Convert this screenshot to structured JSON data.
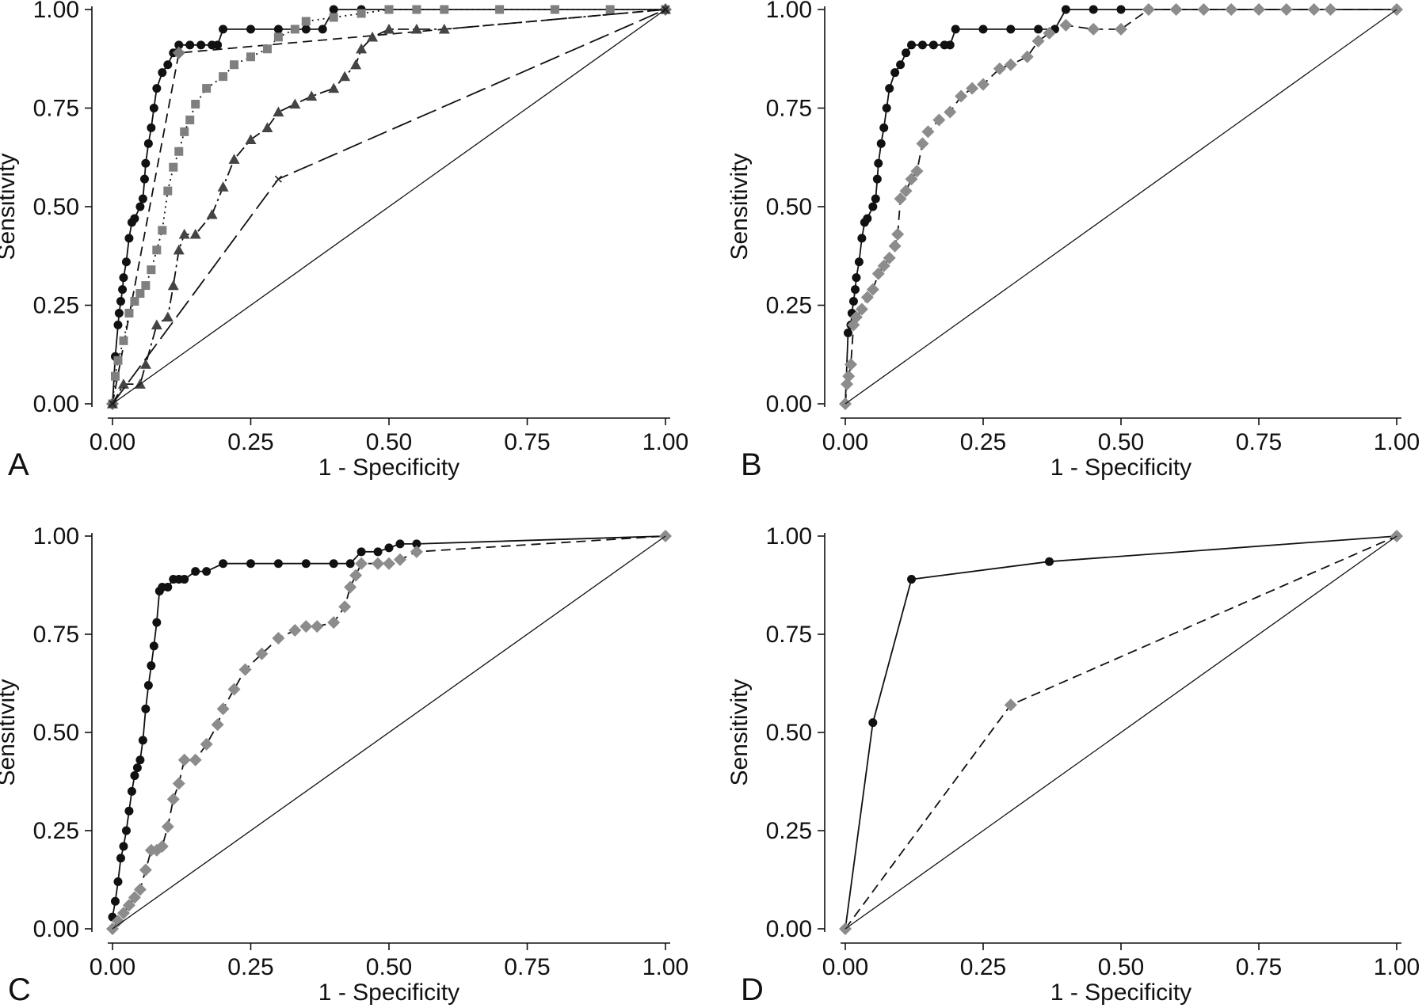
{
  "chart_data": [
    {
      "type": "line",
      "panel": "A",
      "xlabel": "1 - Specificity",
      "ylabel": "Sensitivity",
      "xlim": [
        0,
        1
      ],
      "ylim": [
        0,
        1
      ],
      "xticks": [
        "0.00",
        "0.25",
        "0.50",
        "0.75",
        "1.00"
      ],
      "yticks": [
        "0.00",
        "0.25",
        "0.50",
        "0.75",
        "1.00"
      ],
      "grid": false,
      "series": [
        {
          "marker": "circle",
          "color": "#111111",
          "line": "solid",
          "x": [
            0,
            0.005,
            0.01,
            0.012,
            0.015,
            0.018,
            0.02,
            0.025,
            0.03,
            0.035,
            0.04,
            0.05,
            0.055,
            0.058,
            0.06,
            0.065,
            0.07,
            0.075,
            0.08,
            0.09,
            0.1,
            0.11,
            0.12,
            0.14,
            0.16,
            0.18,
            0.19,
            0.2,
            0.25,
            0.3,
            0.35,
            0.38,
            0.4,
            0.45,
            0.5,
            0.55,
            1.0
          ],
          "y": [
            0,
            0.12,
            0.2,
            0.23,
            0.26,
            0.29,
            0.32,
            0.36,
            0.42,
            0.46,
            0.47,
            0.5,
            0.52,
            0.57,
            0.61,
            0.66,
            0.7,
            0.75,
            0.8,
            0.84,
            0.86,
            0.89,
            0.91,
            0.91,
            0.91,
            0.91,
            0.91,
            0.95,
            0.95,
            0.95,
            0.95,
            0.95,
            1.0,
            1.0,
            1.0,
            1.0,
            1.0
          ]
        },
        {
          "marker": "diamond",
          "color": "#7a7a7a",
          "line": "dashed",
          "x": [
            0,
            0.12,
            1.0
          ],
          "y": [
            0,
            0.89,
            1.0
          ]
        },
        {
          "marker": "square",
          "color": "#7f7f7f",
          "line": "dotted",
          "x": [
            0,
            0.005,
            0.01,
            0.02,
            0.03,
            0.04,
            0.05,
            0.06,
            0.07,
            0.08,
            0.09,
            0.1,
            0.11,
            0.12,
            0.13,
            0.14,
            0.15,
            0.17,
            0.2,
            0.22,
            0.25,
            0.28,
            0.3,
            0.33,
            0.35,
            0.4,
            0.45,
            0.5,
            0.55,
            0.6,
            0.7,
            0.8,
            0.9,
            1.0
          ],
          "y": [
            0,
            0.07,
            0.11,
            0.16,
            0.23,
            0.26,
            0.28,
            0.3,
            0.34,
            0.39,
            0.44,
            0.54,
            0.6,
            0.64,
            0.69,
            0.72,
            0.76,
            0.8,
            0.83,
            0.86,
            0.88,
            0.9,
            0.93,
            0.95,
            0.97,
            0.98,
            0.99,
            1.0,
            1.0,
            1.0,
            1.0,
            1.0,
            1.0,
            1.0
          ]
        },
        {
          "marker": "triangle",
          "color": "#444444",
          "line": "dashdot",
          "x": [
            0,
            0.02,
            0.05,
            0.06,
            0.08,
            0.1,
            0.11,
            0.12,
            0.13,
            0.15,
            0.18,
            0.2,
            0.22,
            0.25,
            0.28,
            0.3,
            0.33,
            0.36,
            0.4,
            0.42,
            0.44,
            0.45,
            0.47,
            0.5,
            0.55,
            0.6,
            1.0
          ],
          "y": [
            0,
            0.05,
            0.05,
            0.1,
            0.2,
            0.22,
            0.3,
            0.39,
            0.43,
            0.43,
            0.48,
            0.55,
            0.62,
            0.67,
            0.7,
            0.74,
            0.76,
            0.78,
            0.8,
            0.83,
            0.86,
            0.9,
            0.93,
            0.95,
            0.95,
            0.95,
            1.0
          ]
        },
        {
          "marker": "cross",
          "color": "#222222",
          "line": "longdash",
          "x": [
            0,
            0.3,
            1.0
          ],
          "y": [
            0,
            0.57,
            1.0
          ]
        },
        {
          "marker": "none",
          "color": "#111111",
          "line": "thin",
          "x": [
            0,
            1
          ],
          "y": [
            0,
            1
          ]
        }
      ]
    },
    {
      "type": "line",
      "panel": "B",
      "xlabel": "1 - Specificity",
      "ylabel": "Sensitivity",
      "xlim": [
        0,
        1
      ],
      "ylim": [
        0,
        1
      ],
      "xticks": [
        "0.00",
        "0.25",
        "0.50",
        "0.75",
        "1.00"
      ],
      "yticks": [
        "0.00",
        "0.25",
        "0.50",
        "0.75",
        "1.00"
      ],
      "grid": false,
      "series": [
        {
          "marker": "circle",
          "color": "#111111",
          "line": "solid",
          "x": [
            0,
            0.005,
            0.01,
            0.012,
            0.015,
            0.018,
            0.02,
            0.025,
            0.03,
            0.035,
            0.04,
            0.05,
            0.055,
            0.058,
            0.06,
            0.065,
            0.07,
            0.075,
            0.08,
            0.09,
            0.1,
            0.11,
            0.12,
            0.14,
            0.16,
            0.18,
            0.19,
            0.2,
            0.25,
            0.3,
            0.35,
            0.38,
            0.4,
            0.45,
            0.5,
            0.55,
            1.0
          ],
          "y": [
            0,
            0.18,
            0.2,
            0.23,
            0.26,
            0.29,
            0.32,
            0.36,
            0.42,
            0.46,
            0.47,
            0.5,
            0.52,
            0.57,
            0.61,
            0.66,
            0.7,
            0.75,
            0.8,
            0.84,
            0.86,
            0.89,
            0.91,
            0.91,
            0.91,
            0.91,
            0.91,
            0.95,
            0.95,
            0.95,
            0.95,
            0.95,
            1.0,
            1.0,
            1.0,
            1.0,
            1.0
          ]
        },
        {
          "marker": "diamond",
          "color": "#8c8c8c",
          "line": "dashed",
          "x": [
            0,
            0.003,
            0.006,
            0.01,
            0.015,
            0.02,
            0.03,
            0.04,
            0.05,
            0.06,
            0.07,
            0.08,
            0.09,
            0.095,
            0.1,
            0.11,
            0.12,
            0.13,
            0.14,
            0.15,
            0.17,
            0.19,
            0.21,
            0.23,
            0.25,
            0.28,
            0.3,
            0.33,
            0.35,
            0.37,
            0.4,
            0.45,
            0.5,
            0.55,
            0.6,
            0.65,
            0.7,
            0.75,
            0.8,
            0.85,
            0.88,
            1.0
          ],
          "y": [
            0,
            0.05,
            0.07,
            0.1,
            0.2,
            0.22,
            0.24,
            0.27,
            0.29,
            0.33,
            0.35,
            0.37,
            0.4,
            0.43,
            0.52,
            0.54,
            0.57,
            0.59,
            0.66,
            0.69,
            0.72,
            0.74,
            0.78,
            0.8,
            0.81,
            0.85,
            0.86,
            0.88,
            0.92,
            0.94,
            0.96,
            0.95,
            0.95,
            1.0,
            1.0,
            1.0,
            1.0,
            1.0,
            1.0,
            1.0,
            1.0,
            1.0
          ]
        },
        {
          "marker": "none",
          "color": "#111111",
          "line": "thin",
          "x": [
            0,
            1
          ],
          "y": [
            0,
            1
          ]
        }
      ]
    },
    {
      "type": "line",
      "panel": "C",
      "xlabel": "1 - Specificity",
      "ylabel": "Sensitivity",
      "xlim": [
        0,
        1
      ],
      "ylim": [
        0,
        1
      ],
      "xticks": [
        "0.00",
        "0.25",
        "0.50",
        "0.75",
        "1.00"
      ],
      "yticks": [
        "0.00",
        "0.25",
        "0.50",
        "0.75",
        "1.00"
      ],
      "grid": false,
      "series": [
        {
          "marker": "circle",
          "color": "#111111",
          "line": "solid",
          "x": [
            0,
            0.005,
            0.01,
            0.015,
            0.02,
            0.025,
            0.03,
            0.035,
            0.04,
            0.045,
            0.05,
            0.055,
            0.06,
            0.065,
            0.07,
            0.075,
            0.08,
            0.085,
            0.09,
            0.1,
            0.11,
            0.12,
            0.13,
            0.15,
            0.17,
            0.2,
            0.25,
            0.3,
            0.35,
            0.4,
            0.43,
            0.45,
            0.48,
            0.5,
            0.52,
            0.55,
            1.0
          ],
          "y": [
            0.03,
            0.07,
            0.12,
            0.18,
            0.21,
            0.25,
            0.3,
            0.35,
            0.39,
            0.41,
            0.43,
            0.48,
            0.56,
            0.62,
            0.67,
            0.72,
            0.78,
            0.86,
            0.87,
            0.87,
            0.89,
            0.89,
            0.89,
            0.91,
            0.91,
            0.93,
            0.93,
            0.93,
            0.93,
            0.93,
            0.93,
            0.96,
            0.96,
            0.97,
            0.98,
            0.98,
            1.0
          ]
        },
        {
          "marker": "diamond",
          "color": "#8c8c8c",
          "line": "dashed",
          "x": [
            0,
            0.01,
            0.02,
            0.03,
            0.04,
            0.05,
            0.06,
            0.07,
            0.08,
            0.09,
            0.1,
            0.11,
            0.12,
            0.13,
            0.15,
            0.17,
            0.19,
            0.2,
            0.22,
            0.24,
            0.27,
            0.3,
            0.33,
            0.35,
            0.37,
            0.4,
            0.42,
            0.43,
            0.44,
            0.45,
            0.48,
            0.5,
            0.52,
            0.55,
            1.0
          ],
          "y": [
            0,
            0.02,
            0.04,
            0.06,
            0.08,
            0.1,
            0.15,
            0.2,
            0.2,
            0.21,
            0.26,
            0.33,
            0.37,
            0.43,
            0.43,
            0.47,
            0.52,
            0.56,
            0.61,
            0.66,
            0.7,
            0.74,
            0.76,
            0.77,
            0.77,
            0.78,
            0.82,
            0.87,
            0.9,
            0.93,
            0.93,
            0.93,
            0.94,
            0.96,
            1.0
          ]
        },
        {
          "marker": "none",
          "color": "#111111",
          "line": "thin",
          "x": [
            0,
            1
          ],
          "y": [
            0,
            1
          ]
        }
      ]
    },
    {
      "type": "line",
      "panel": "D",
      "xlabel": "1 - Specificity",
      "ylabel": "Sensitivity",
      "xlim": [
        0,
        1
      ],
      "ylim": [
        0,
        1
      ],
      "xticks": [
        "0.00",
        "0.25",
        "0.50",
        "0.75",
        "1.00"
      ],
      "yticks": [
        "0.00",
        "0.25",
        "0.50",
        "0.75",
        "1.00"
      ],
      "grid": false,
      "series": [
        {
          "marker": "circle",
          "color": "#111111",
          "line": "solid",
          "x": [
            0,
            0.05,
            0.12,
            0.37,
            1.0
          ],
          "y": [
            0,
            0.525,
            0.89,
            0.935,
            1.0
          ]
        },
        {
          "marker": "diamond",
          "color": "#8c8c8c",
          "line": "dashed",
          "x": [
            0,
            0.3,
            1.0
          ],
          "y": [
            0,
            0.57,
            1.0
          ]
        },
        {
          "marker": "none",
          "color": "#111111",
          "line": "thin",
          "x": [
            0,
            1
          ],
          "y": [
            0,
            1
          ]
        }
      ]
    }
  ]
}
